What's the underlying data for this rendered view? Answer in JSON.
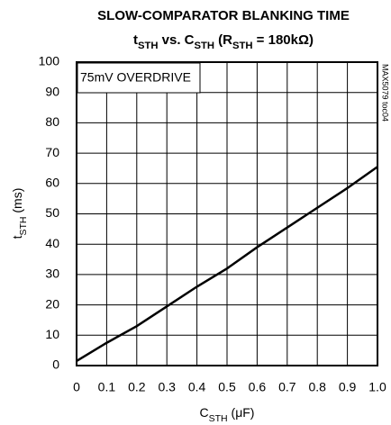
{
  "chart_data": {
    "type": "line",
    "title": "SLOW-COMPARATOR BLANKING TIME",
    "subtitle": [
      {
        "text": "t"
      },
      {
        "text": "STH",
        "sub": true
      },
      {
        "text": " vs. C"
      },
      {
        "text": "STH",
        "sub": true
      },
      {
        "text": " (R"
      },
      {
        "text": "STH",
        "sub": true
      },
      {
        "text": " = 180kΩ)"
      }
    ],
    "x_label": [
      {
        "text": "C"
      },
      {
        "text": "STH",
        "sub": true
      },
      {
        "text": " (μF)"
      }
    ],
    "y_label": [
      {
        "text": "t"
      },
      {
        "text": "STH",
        "sub": true
      },
      {
        "text": " (ms)"
      }
    ],
    "annotations": [
      "75mV OVERDRIVE",
      "MAX5079 toc04"
    ],
    "x": [
      0,
      0.1,
      0.2,
      0.3,
      0.4,
      0.5,
      0.6,
      0.7,
      0.8,
      0.9,
      1.0
    ],
    "values": [
      1.5,
      7.5,
      13,
      19.5,
      26,
      32,
      39,
      45.5,
      52,
      58.5,
      65.5
    ],
    "color": "#000000",
    "xlim": [
      0,
      1
    ],
    "xticks": [
      0,
      0.1,
      0.2,
      0.3,
      0.4,
      0.5,
      0.6,
      0.7,
      0.8,
      0.9,
      {
        "value": 1,
        "label": "1.0"
      }
    ],
    "ylim": [
      0,
      100
    ],
    "yticks": [
      0,
      10,
      20,
      30,
      40,
      50,
      60,
      70,
      80,
      90,
      100
    ],
    "grid": true
  }
}
